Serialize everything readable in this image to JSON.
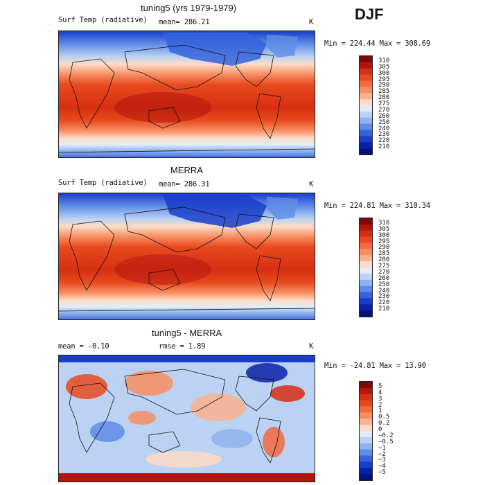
{
  "season": "DJF",
  "panels": [
    {
      "title": "tuning5 (yrs 1979-1979)",
      "left_label": "Surf Temp (radiative)",
      "stat": "mean=  286.21",
      "stat2": "",
      "units": "K",
      "minmax": "Min = 224.44 Max = 308.69",
      "colorbar_labels": [
        "310",
        "305",
        "300",
        "295",
        "290",
        "285",
        "280",
        "275",
        "270",
        "260",
        "250",
        "240",
        "230",
        "220",
        "210"
      ],
      "colors": [
        "#7e0a06",
        "#b3150b",
        "#d62f12",
        "#e84a1f",
        "#f26a3d",
        "#f78e63",
        "#fab38f",
        "#fcdcc6",
        "#e3ecf8",
        "#bcd2f3",
        "#8fb3ee",
        "#5f8ce6",
        "#3563dc",
        "#1a3ec9",
        "#0b22a8",
        "#03127a"
      ]
    },
    {
      "title": "MERRA",
      "left_label": "Surf Temp (radiative)",
      "stat": "mean=  286.31",
      "stat2": "",
      "units": "K",
      "minmax": "Min = 224.81 Max = 310.34",
      "colorbar_labels": [
        "310",
        "305",
        "300",
        "295",
        "290",
        "285",
        "280",
        "275",
        "270",
        "260",
        "250",
        "240",
        "230",
        "220",
        "210"
      ],
      "colors": [
        "#7e0a06",
        "#b3150b",
        "#d62f12",
        "#e84a1f",
        "#f26a3d",
        "#f78e63",
        "#fab38f",
        "#fcdcc6",
        "#e3ecf8",
        "#bcd2f3",
        "#8fb3ee",
        "#5f8ce6",
        "#3563dc",
        "#1a3ec9",
        "#0b22a8",
        "#03127a"
      ]
    },
    {
      "title": "tuning5 - MERRA",
      "left_label": "mean =   -0.10",
      "stat": "",
      "stat2": "rmse =    1.89",
      "units": "K",
      "minmax": "Min = -24.81 Max =   13.90",
      "colorbar_labels": [
        "5",
        "4",
        "3",
        "2",
        "1",
        "0.5",
        "0.2",
        "0",
        "−0.2",
        "−0.5",
        "−1",
        "−2",
        "−3",
        "−4",
        "−5"
      ],
      "colors": [
        "#7e0a06",
        "#b3150b",
        "#d62f12",
        "#e84a1f",
        "#f26a3d",
        "#f78e63",
        "#fab38f",
        "#fcdcc6",
        "#e3ecf8",
        "#bcd2f3",
        "#8fb3ee",
        "#5f8ce6",
        "#3563dc",
        "#1a3ec9",
        "#0b22a8",
        "#03127a"
      ]
    }
  ]
}
